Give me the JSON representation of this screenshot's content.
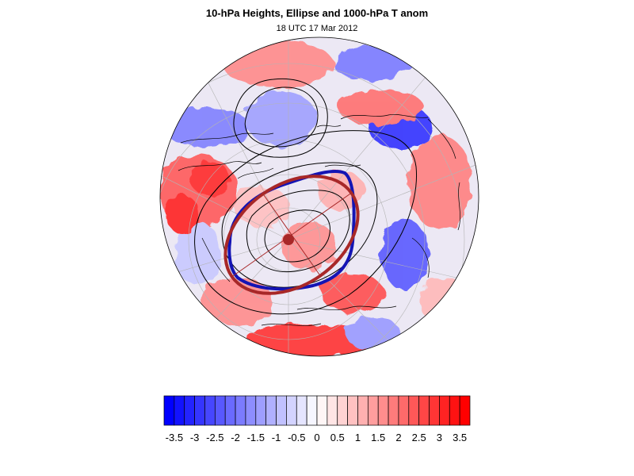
{
  "title": "10-hPa Heights, Ellipse and 1000-hPa T anom",
  "subtitle": "18 UTC 17 Mar 2012",
  "map": {
    "projection": "polar-stereographic-north",
    "field": "1000-hPa temperature anomaly",
    "overlays": [
      "10-hPa height contours",
      "vortex edge contour",
      "fitted ellipse",
      "vortex centroid"
    ],
    "colors": {
      "edge_contour": "#1414b4",
      "ellipse": "#a82828",
      "height_contours": "#000000",
      "coastlines": "#000000",
      "graticule": "#b4b4b4"
    }
  },
  "colorbar": {
    "levels": [
      -3.75,
      -3.5,
      -3.25,
      -3,
      -2.75,
      -2.5,
      -2.25,
      -2,
      -1.75,
      -1.5,
      -1.25,
      -1,
      -0.75,
      -0.5,
      -0.25,
      0,
      0.25,
      0.5,
      0.75,
      1,
      1.25,
      1.5,
      1.75,
      2,
      2.25,
      2.5,
      2.75,
      3,
      3.25,
      3.5,
      3.75
    ],
    "tick_labels": [
      "-3.5",
      "-3",
      "-2.5",
      "-2",
      "-1.5",
      "-1",
      "-0.5",
      "0",
      "0.5",
      "1",
      "1.5",
      "2",
      "2.5",
      "3",
      "3.5"
    ],
    "tick_values": [
      -3.5,
      -3,
      -2.5,
      -2,
      -1.5,
      -1,
      -0.5,
      0,
      0.5,
      1,
      1.5,
      2,
      2.5,
      3,
      3.5
    ],
    "neg_color": "#0000ff",
    "pos_color": "#ff0000"
  }
}
